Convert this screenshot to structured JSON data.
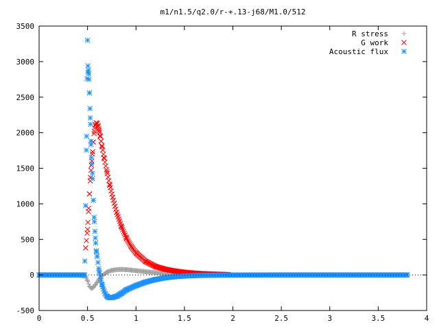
{
  "chart_data": {
    "type": "scatter",
    "title": "m1/n1.5/q2.0/r-+.13-j68/M1.0/512",
    "xlabel": "",
    "ylabel": "",
    "xlim": [
      0,
      4
    ],
    "ylim": [
      -500,
      3500
    ],
    "x_ticks": [
      "0",
      "0.5",
      "1",
      "1.5",
      "2",
      "2.5",
      "3",
      "3.5",
      "4"
    ],
    "y_ticks": [
      "-500",
      "0",
      "500",
      "1000",
      "1500",
      "2000",
      "2500",
      "3000",
      "3500"
    ],
    "x_tick_values": [
      0,
      0.5,
      1,
      1.5,
      2,
      2.5,
      3,
      3.5,
      4
    ],
    "y_tick_values": [
      -500,
      0,
      500,
      1000,
      1500,
      2000,
      2500,
      3000,
      3500
    ],
    "grid": false,
    "legend": "top-right",
    "series": [
      {
        "name": "R stress",
        "color": "#a0a0a0",
        "marker": "plus",
        "x": [
          0,
          0.2,
          0.4,
          0.48,
          0.5,
          0.52,
          0.54,
          0.56,
          0.58,
          0.6,
          0.62,
          0.65,
          0.7,
          0.75,
          0.8,
          0.85,
          0.9,
          0.95,
          1.0,
          1.1,
          1.2,
          1.3,
          1.4,
          1.5,
          1.6,
          1.8,
          2.0,
          2.5,
          3.0,
          3.5,
          3.8
        ],
        "y": [
          0,
          0,
          0,
          -20,
          -80,
          -160,
          -190,
          -175,
          -140,
          -100,
          -60,
          -10,
          40,
          65,
          75,
          78,
          75,
          68,
          60,
          45,
          32,
          22,
          15,
          10,
          6,
          3,
          1,
          0,
          0,
          0,
          0
        ]
      },
      {
        "name": "G work",
        "color": "#ff0000",
        "marker": "cross",
        "x": [
          0.48,
          0.5,
          0.51,
          0.52,
          0.53,
          0.54,
          0.55,
          0.56,
          0.57,
          0.58,
          0.59,
          0.6,
          0.61,
          0.62,
          0.63,
          0.64,
          0.65,
          0.67,
          0.7,
          0.73,
          0.76,
          0.8,
          0.85,
          0.9,
          0.95,
          1.0,
          1.1,
          1.2,
          1.3,
          1.4,
          1.5,
          1.6,
          1.7,
          1.8,
          1.9,
          1.95
        ],
        "y": [
          380,
          640,
          890,
          1140,
          1370,
          1540,
          1700,
          1870,
          2020,
          2100,
          2140,
          2130,
          2090,
          2030,
          1960,
          1880,
          1800,
          1650,
          1450,
          1260,
          1090,
          880,
          680,
          520,
          400,
          310,
          190,
          120,
          80,
          55,
          38,
          26,
          18,
          12,
          8,
          6
        ]
      },
      {
        "name": "Acoustic flux",
        "color": "#1e90ff",
        "marker": "star",
        "x": [
          0,
          0.2,
          0.4,
          0.47,
          0.49,
          0.5,
          0.505,
          0.51,
          0.515,
          0.52,
          0.525,
          0.53,
          0.535,
          0.54,
          0.55,
          0.56,
          0.57,
          0.58,
          0.59,
          0.6,
          0.62,
          0.65,
          0.68,
          0.7,
          0.72,
          0.75,
          0.8,
          0.85,
          0.9,
          1.0,
          1.1,
          1.2,
          1.3,
          1.4,
          1.5,
          1.7,
          2.0,
          2.5,
          3.0,
          3.5,
          3.8
        ],
        "y": [
          0,
          0,
          0,
          0,
          1950,
          3300,
          2850,
          2880,
          2750,
          2560,
          2340,
          2120,
          1880,
          1650,
          1430,
          1050,
          750,
          520,
          340,
          260,
          50,
          -140,
          -260,
          -300,
          -320,
          -320,
          -300,
          -260,
          -210,
          -150,
          -100,
          -65,
          -40,
          -25,
          -15,
          -6,
          -2,
          0,
          0,
          0,
          0
        ]
      }
    ]
  }
}
